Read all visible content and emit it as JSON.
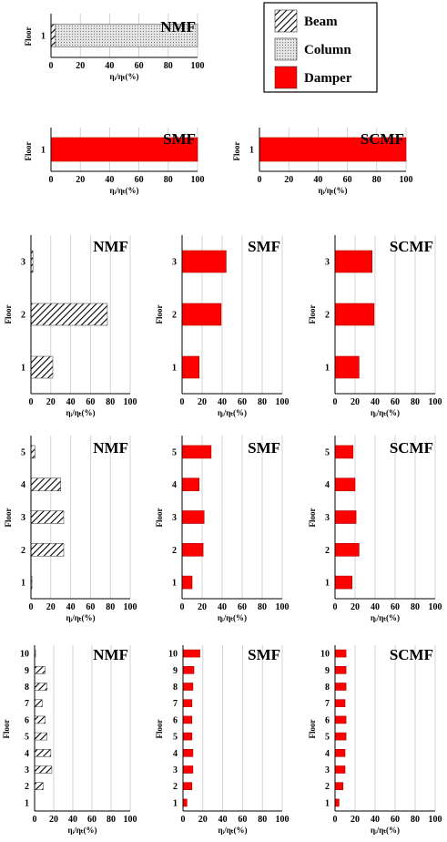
{
  "legend": {
    "items": [
      {
        "label": "Beam",
        "pattern": "hatch"
      },
      {
        "label": "Column",
        "pattern": "dots"
      },
      {
        "label": "Damper",
        "pattern": "solid"
      }
    ]
  },
  "colors": {
    "damper": "#ff0000",
    "damper_edge": "#b00000",
    "grid": "#c8c8c8",
    "axis": "#000000",
    "column": "#d9d9d9"
  },
  "chart_data": [
    {
      "type": "bar",
      "orientation": "horizontal",
      "title": "NMF",
      "xlabel": "ηᵢ/ηₜ(%)",
      "ylabel": "Floor",
      "xlim": [
        0,
        100
      ],
      "xticks": [
        0,
        20,
        40,
        60,
        80,
        100
      ],
      "categories": [
        "1"
      ],
      "series": [
        {
          "name": "Beam",
          "pattern": "hatch",
          "values": [
            3
          ]
        },
        {
          "name": "Column",
          "pattern": "dots",
          "values": [
            97
          ]
        }
      ]
    },
    {
      "type": "bar",
      "orientation": "horizontal",
      "title": "SMF",
      "xlabel": "ηᵢ/ηₜ(%)",
      "ylabel": "Floor",
      "xlim": [
        0,
        100
      ],
      "xticks": [
        0,
        20,
        40,
        60,
        80,
        100
      ],
      "categories": [
        "1"
      ],
      "series": [
        {
          "name": "Damper",
          "pattern": "solid",
          "values": [
            100
          ]
        }
      ]
    },
    {
      "type": "bar",
      "orientation": "horizontal",
      "title": "SCMF",
      "xlabel": "ηᵢ/ηₜ(%)",
      "ylabel": "Floor",
      "xlim": [
        0,
        100
      ],
      "xticks": [
        0,
        20,
        40,
        60,
        80,
        100
      ],
      "categories": [
        "1"
      ],
      "series": [
        {
          "name": "Damper",
          "pattern": "solid",
          "values": [
            100
          ]
        }
      ]
    },
    {
      "type": "bar",
      "orientation": "horizontal",
      "title": "NMF",
      "xlabel": "ηᵢ/ηₜ(%)",
      "ylabel": "Floor",
      "xlim": [
        0,
        100
      ],
      "xticks": [
        0,
        20,
        40,
        60,
        80,
        100
      ],
      "categories": [
        "1",
        "2",
        "3"
      ],
      "series": [
        {
          "name": "Beam",
          "pattern": "hatch",
          "values": [
            22,
            77,
            2
          ]
        }
      ]
    },
    {
      "type": "bar",
      "orientation": "horizontal",
      "title": "SMF",
      "xlabel": "ηᵢ/ηₜ(%)",
      "ylabel": "Floor",
      "xlim": [
        0,
        100
      ],
      "xticks": [
        0,
        20,
        40,
        60,
        80,
        100
      ],
      "categories": [
        "1",
        "2",
        "3"
      ],
      "series": [
        {
          "name": "Damper",
          "pattern": "solid",
          "values": [
            17,
            39,
            44
          ]
        }
      ]
    },
    {
      "type": "bar",
      "orientation": "horizontal",
      "title": "SCMF",
      "xlabel": "ηᵢ/ηₜ(%)",
      "ylabel": "Floor",
      "xlim": [
        0,
        100
      ],
      "xticks": [
        0,
        20,
        40,
        60,
        80,
        100
      ],
      "categories": [
        "1",
        "2",
        "3"
      ],
      "series": [
        {
          "name": "Damper",
          "pattern": "solid",
          "values": [
            24,
            39,
            37
          ]
        }
      ]
    },
    {
      "type": "bar",
      "orientation": "horizontal",
      "title": "NMF",
      "xlabel": "ηᵢ/ηₜ(%)",
      "ylabel": "Floor",
      "xlim": [
        0,
        100
      ],
      "xticks": [
        0,
        20,
        40,
        60,
        80,
        100
      ],
      "categories": [
        "1",
        "2",
        "3",
        "4",
        "5"
      ],
      "series": [
        {
          "name": "Beam",
          "pattern": "hatch",
          "values": [
            1,
            33,
            33,
            30,
            4
          ]
        }
      ]
    },
    {
      "type": "bar",
      "orientation": "horizontal",
      "title": "SMF",
      "xlabel": "ηᵢ/ηₜ(%)",
      "ylabel": "Floor",
      "xlim": [
        0,
        100
      ],
      "xticks": [
        0,
        20,
        40,
        60,
        80,
        100
      ],
      "categories": [
        "1",
        "2",
        "3",
        "4",
        "5"
      ],
      "series": [
        {
          "name": "Damper",
          "pattern": "solid",
          "values": [
            10,
            21,
            22,
            17,
            29
          ]
        }
      ]
    },
    {
      "type": "bar",
      "orientation": "horizontal",
      "title": "SCMF",
      "xlabel": "ηᵢ/ηₜ(%)",
      "ylabel": "Floor",
      "xlim": [
        0,
        100
      ],
      "xticks": [
        0,
        20,
        40,
        60,
        80,
        100
      ],
      "categories": [
        "1",
        "2",
        "3",
        "4",
        "5"
      ],
      "series": [
        {
          "name": "Damper",
          "pattern": "solid",
          "values": [
            17,
            24,
            21,
            20,
            18
          ]
        }
      ]
    },
    {
      "type": "bar",
      "orientation": "horizontal",
      "title": "NMF",
      "xlabel": "ηᵢ/ηₜ(%)",
      "ylabel": "Floor",
      "xlim": [
        0,
        100
      ],
      "xticks": [
        0,
        20,
        40,
        60,
        80,
        100
      ],
      "categories": [
        "1",
        "2",
        "3",
        "4",
        "5",
        "6",
        "7",
        "8",
        "9",
        "10"
      ],
      "series": [
        {
          "name": "Beam",
          "pattern": "hatch",
          "values": [
            0,
            9,
            18,
            17,
            13,
            11,
            8,
            13,
            11,
            1
          ]
        }
      ]
    },
    {
      "type": "bar",
      "orientation": "horizontal",
      "title": "SMF",
      "xlabel": "ηᵢ/ηₜ(%)",
      "ylabel": "Floor",
      "xlim": [
        0,
        100
      ],
      "xticks": [
        0,
        20,
        40,
        60,
        80,
        100
      ],
      "categories": [
        "1",
        "2",
        "3",
        "4",
        "5",
        "6",
        "7",
        "8",
        "9",
        "10"
      ],
      "series": [
        {
          "name": "Damper",
          "pattern": "solid",
          "values": [
            4,
            9,
            10,
            10,
            9,
            9,
            9,
            10,
            11,
            17
          ]
        }
      ]
    },
    {
      "type": "bar",
      "orientation": "horizontal",
      "title": "SCMF",
      "xlabel": "ηᵢ/ηₜ(%)",
      "ylabel": "Floor",
      "xlim": [
        0,
        100
      ],
      "xticks": [
        0,
        20,
        40,
        60,
        80,
        100
      ],
      "categories": [
        "1",
        "2",
        "3",
        "4",
        "5",
        "6",
        "7",
        "8",
        "9",
        "10"
      ],
      "series": [
        {
          "name": "Damper",
          "pattern": "solid",
          "values": [
            4,
            8,
            10,
            10,
            11,
            11,
            10,
            11,
            11,
            11
          ]
        }
      ]
    }
  ]
}
